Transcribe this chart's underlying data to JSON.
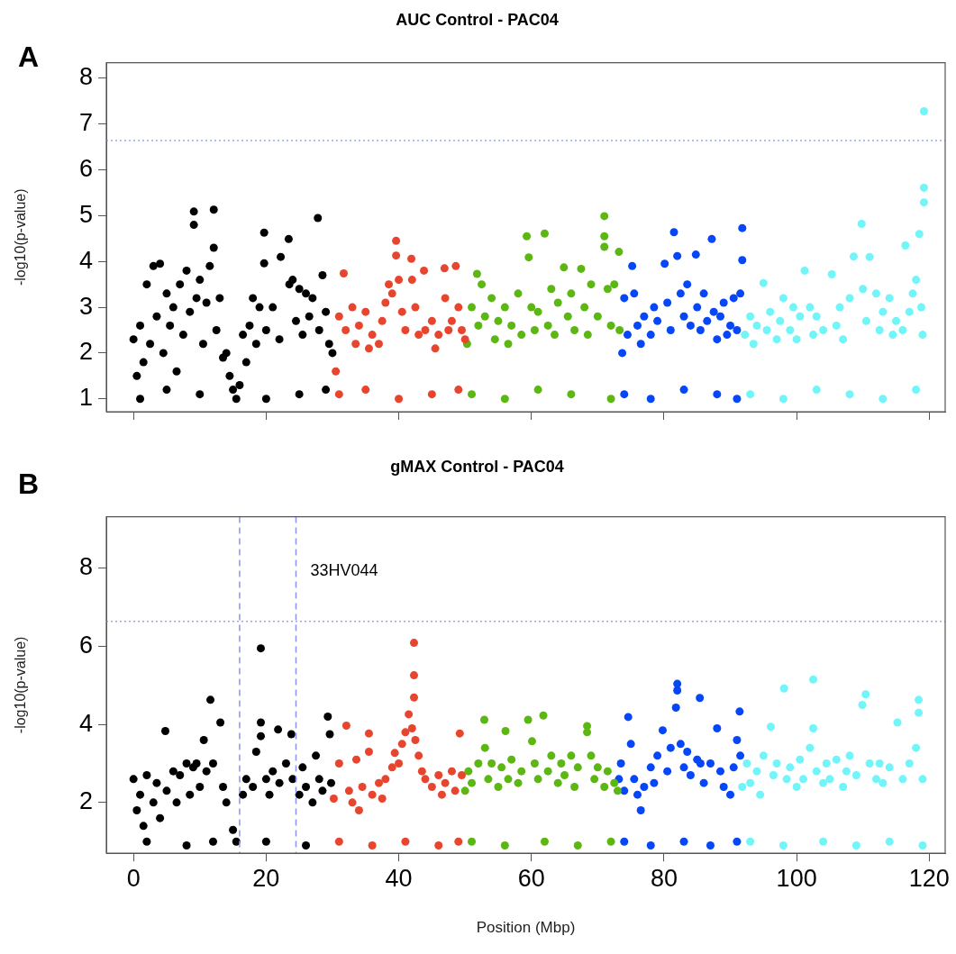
{
  "chart_data": [
    {
      "type": "scatter",
      "title": "AUC Control - PAC04",
      "ylabel": "-log10(p-value)",
      "annotations": [
        "A"
      ],
      "marker": "circle",
      "tick_labels": "y",
      "xlim": [
        -4.1,
        122.4
      ],
      "xticks": [
        0,
        20,
        40,
        60,
        80,
        100,
        120
      ],
      "ylim": [
        0.72,
        8.34
      ],
      "yticks": [
        1,
        2,
        3,
        4,
        5,
        6,
        7,
        8
      ],
      "ref_lines": [
        {
          "axis": "y",
          "value": 6.64,
          "color": "#9aa6f0",
          "line_style": "dotted"
        }
      ],
      "series": [
        {
          "color": "#000000",
          "x": [
            0,
            0.5,
            1,
            1.5,
            2,
            2.5,
            3,
            3.5,
            4,
            4.5,
            5,
            5.5,
            6,
            6.5,
            7,
            7.5,
            8,
            8.5,
            9.1,
            9.1,
            9.5,
            10,
            10.5,
            11,
            11.5,
            12.1,
            12.1,
            12.5,
            13,
            13.5,
            14,
            14.5,
            15,
            15.5,
            16,
            16.5,
            17,
            17.5,
            18,
            18.5,
            19,
            19.7,
            19.7,
            20,
            21,
            22.2,
            22,
            23.4,
            23.5,
            24,
            24.5,
            25,
            25.5,
            26,
            26.5,
            27,
            27.8,
            28,
            28.5,
            29,
            29.5,
            30,
            1,
            5,
            10,
            20,
            25,
            29
          ],
          "values": [
            2.3,
            1.5,
            2.6,
            1.8,
            3.5,
            2.2,
            3.9,
            2.8,
            3.95,
            2.0,
            3.3,
            2.6,
            3.0,
            1.6,
            3.5,
            2.4,
            3.8,
            2.9,
            5.09,
            4.8,
            3.2,
            3.6,
            2.2,
            3.1,
            3.9,
            5.13,
            4.3,
            2.5,
            3.2,
            1.9,
            2.0,
            1.5,
            1.2,
            1.0,
            1.3,
            2.4,
            1.8,
            2.6,
            3.2,
            2.2,
            3.0,
            4.63,
            3.96,
            2.5,
            3.0,
            4.1,
            2.3,
            4.49,
            3.5,
            3.6,
            2.7,
            3.4,
            2.4,
            3.3,
            2.8,
            3.2,
            4.95,
            2.5,
            3.7,
            2.9,
            2.2,
            2.0,
            1.0,
            1.2,
            1.1,
            1.0,
            1.1,
            1.2
          ]
        },
        {
          "color": "#e8452f",
          "x": [
            30.5,
            31,
            31.7,
            32,
            33,
            33.5,
            34,
            35,
            35.5,
            36,
            37,
            37.5,
            38,
            38.5,
            39,
            39.6,
            39.6,
            40,
            40.5,
            41,
            41.9,
            42,
            42.5,
            43,
            43.8,
            44,
            45,
            45.5,
            46,
            46.9,
            47,
            47.5,
            48,
            48.6,
            49,
            49.5,
            50,
            31,
            35,
            40,
            45,
            49
          ],
          "values": [
            1.6,
            2.8,
            3.74,
            2.5,
            3.0,
            2.2,
            2.6,
            2.9,
            2.1,
            2.4,
            2.2,
            2.7,
            3.1,
            3.5,
            3.3,
            4.45,
            4.13,
            3.6,
            2.9,
            2.5,
            4.06,
            3.6,
            3.0,
            2.4,
            3.8,
            2.5,
            2.7,
            2.1,
            2.4,
            3.85,
            3.2,
            2.5,
            2.7,
            3.9,
            3.0,
            2.5,
            2.3,
            1.1,
            1.2,
            1.0,
            1.1,
            1.2
          ]
        },
        {
          "color": "#5cb713",
          "x": [
            50.3,
            51,
            51.8,
            52,
            52.5,
            53,
            54,
            54.5,
            55,
            56,
            56.5,
            57,
            58,
            58.5,
            59.3,
            59.6,
            60,
            60.5,
            61,
            62,
            62.5,
            63,
            63.5,
            64,
            64.9,
            65.5,
            66,
            66.5,
            67.5,
            68,
            68.5,
            69,
            70,
            71,
            71,
            71,
            71.5,
            72,
            72.5,
            73.2,
            73.3,
            51,
            56,
            61,
            66,
            72
          ],
          "values": [
            2.2,
            3.0,
            3.73,
            2.6,
            3.5,
            2.8,
            3.2,
            2.3,
            2.7,
            3.0,
            2.2,
            2.6,
            3.3,
            2.4,
            4.55,
            4.09,
            3.0,
            2.5,
            2.9,
            4.61,
            2.6,
            3.4,
            2.4,
            3.1,
            3.87,
            2.8,
            3.3,
            2.5,
            3.84,
            3.0,
            2.4,
            3.5,
            2.8,
            4.99,
            4.55,
            4.32,
            3.4,
            2.6,
            3.5,
            4.21,
            2.5,
            1.1,
            1.0,
            1.2,
            1.1,
            1.0
          ]
        },
        {
          "color": "#0547f7",
          "x": [
            73.7,
            74,
            74.5,
            75.2,
            75.5,
            76,
            76.5,
            77,
            78,
            78.5,
            79,
            80.1,
            80.5,
            81,
            81.5,
            82,
            82.5,
            83,
            83.5,
            84,
            84.8,
            85,
            85.5,
            86,
            86.5,
            87.2,
            87.5,
            88,
            88.5,
            89,
            89.5,
            90,
            90.5,
            91,
            91.8,
            91.8,
            91.5,
            74,
            78,
            83,
            88,
            91
          ],
          "values": [
            2.0,
            3.2,
            2.4,
            3.9,
            3.3,
            2.6,
            2.2,
            2.8,
            2.4,
            3.0,
            2.7,
            3.95,
            3.1,
            2.5,
            4.64,
            4.12,
            3.3,
            2.8,
            3.5,
            2.6,
            4.15,
            3.0,
            2.5,
            3.3,
            2.7,
            4.49,
            2.9,
            2.3,
            2.8,
            3.1,
            2.4,
            2.6,
            3.2,
            2.5,
            4.73,
            4.03,
            3.3,
            1.1,
            1.0,
            1.2,
            1.1,
            1.0
          ]
        },
        {
          "color": "#72f5f8",
          "x": [
            92.2,
            93,
            93.5,
            94,
            95,
            95.5,
            96,
            97,
            97.5,
            98,
            99,
            99.5,
            100,
            100.5,
            101.2,
            102,
            102.5,
            103,
            104,
            105.3,
            106,
            106.5,
            107,
            108,
            108.6,
            109.8,
            110,
            110.5,
            111,
            112,
            112.5,
            113,
            114,
            114.5,
            115,
            116,
            116.4,
            117,
            117.5,
            118,
            118.5,
            118.8,
            119,
            119.2,
            119.2,
            119.2,
            93,
            98,
            103,
            108,
            113,
            118
          ],
          "values": [
            2.4,
            2.8,
            2.2,
            2.6,
            3.53,
            2.5,
            2.9,
            2.3,
            2.7,
            3.2,
            2.5,
            3.0,
            2.3,
            2.8,
            3.8,
            3.0,
            2.4,
            2.8,
            2.5,
            3.72,
            2.6,
            3.0,
            2.3,
            3.2,
            4.11,
            4.82,
            3.4,
            2.7,
            4.1,
            3.3,
            2.5,
            2.9,
            3.2,
            2.4,
            2.7,
            2.5,
            4.35,
            2.9,
            3.3,
            3.6,
            4.6,
            3.0,
            2.4,
            7.28,
            5.61,
            5.29,
            1.1,
            1.0,
            1.2,
            1.1,
            1.0,
            1.2
          ]
        }
      ]
    },
    {
      "type": "scatter",
      "title": "gMAX Control - PAC04",
      "xlabel": "Position (Mbp)",
      "ylabel": "-log10(p-value)",
      "annotations": [
        "B"
      ],
      "marker": "circle",
      "xlim": [
        -4.1,
        122.4
      ],
      "xticks": [
        0,
        20,
        40,
        60,
        80,
        100,
        120
      ],
      "ylim": [
        0.7,
        9.32
      ],
      "yticks": [
        2,
        4,
        6,
        8
      ],
      "ref_lines": [
        {
          "axis": "y",
          "value": 6.64,
          "color": "#9aa6f0",
          "line_style": "dotted"
        },
        {
          "axis": "x",
          "value": 16,
          "color": "#8a94f2",
          "line_style": "dashed"
        },
        {
          "axis": "x",
          "value": 24.5,
          "color": "#8a94f2",
          "line_style": "dashed",
          "label": "33HV044"
        }
      ],
      "series": [
        {
          "color": "#000000",
          "x": [
            0,
            0.5,
            1,
            1.5,
            2,
            3,
            3.5,
            4,
            4.8,
            5,
            6,
            6.5,
            7,
            8,
            8.5,
            9,
            9.5,
            10,
            10.6,
            11,
            11.6,
            12,
            13.1,
            13.5,
            14,
            15,
            15.5,
            16.5,
            17,
            18,
            18.5,
            19.2,
            19.2,
            19.2,
            20,
            20.5,
            21,
            21.8,
            22,
            23,
            23.8,
            24,
            25,
            25.5,
            26,
            27,
            27.5,
            28,
            28.5,
            29.3,
            29.6,
            29.8,
            2,
            8,
            12,
            20,
            26
          ],
          "values": [
            2.6,
            1.8,
            2.2,
            1.4,
            2.7,
            2.0,
            2.5,
            1.6,
            3.83,
            2.3,
            2.8,
            2.0,
            2.7,
            3.0,
            2.2,
            2.9,
            3.0,
            2.4,
            3.6,
            2.8,
            4.63,
            3.0,
            4.05,
            2.4,
            2.0,
            1.3,
            1.0,
            2.2,
            2.6,
            2.4,
            3.3,
            5.95,
            4.05,
            3.7,
            2.6,
            2.2,
            2.8,
            3.87,
            2.5,
            3.0,
            3.75,
            2.6,
            2.2,
            2.9,
            2.4,
            2.0,
            3.2,
            2.6,
            2.3,
            4.2,
            3.75,
            2.5,
            1.0,
            0.9,
            1.0,
            1.0,
            0.9
          ]
        },
        {
          "color": "#e8452f",
          "x": [
            30.2,
            31,
            32.1,
            32.5,
            33,
            33.6,
            34,
            34.5,
            35.5,
            35.5,
            36,
            37,
            37.5,
            38,
            39,
            39.4,
            40,
            40.5,
            41,
            41.5,
            42,
            42.3,
            42.3,
            42.3,
            42.5,
            43,
            43.5,
            44,
            45,
            46,
            46.5,
            47,
            48,
            48.5,
            49.2,
            49.5,
            31,
            36,
            41,
            46,
            49
          ],
          "values": [
            2.1,
            3.0,
            3.97,
            2.3,
            2.0,
            3.1,
            1.8,
            2.4,
            3.77,
            3.3,
            2.2,
            2.5,
            2.1,
            2.6,
            2.9,
            3.27,
            3.0,
            3.5,
            3.8,
            4.26,
            3.9,
            6.09,
            5.26,
            4.69,
            3.6,
            3.2,
            2.8,
            2.6,
            2.4,
            2.7,
            2.2,
            2.5,
            2.8,
            2.3,
            3.77,
            2.7,
            1.0,
            0.9,
            1.0,
            0.9,
            1.0
          ]
        },
        {
          "color": "#5cb713",
          "x": [
            50,
            50.5,
            51,
            52,
            52.9,
            53,
            53.5,
            54,
            55,
            55.5,
            56.1,
            56.5,
            57,
            58,
            58.5,
            59.5,
            60.1,
            60.5,
            61,
            61.8,
            62.5,
            63,
            64,
            64.5,
            65,
            66,
            66.5,
            67,
            68.4,
            68.4,
            69,
            69.5,
            70,
            71,
            71.5,
            72.5,
            73,
            51,
            56,
            62,
            67,
            72
          ],
          "values": [
            2.3,
            2.8,
            2.5,
            3.0,
            4.12,
            3.4,
            2.6,
            3.0,
            2.4,
            2.9,
            3.83,
            2.6,
            3.1,
            2.5,
            2.8,
            4.12,
            3.57,
            3.0,
            2.6,
            4.23,
            2.8,
            3.2,
            2.5,
            3.0,
            2.7,
            3.2,
            2.4,
            2.9,
            3.96,
            3.8,
            3.2,
            2.6,
            2.9,
            2.4,
            2.8,
            2.5,
            2.3,
            1.0,
            0.9,
            1.0,
            0.9,
            1.0
          ]
        },
        {
          "color": "#0547f7",
          "x": [
            73.2,
            73.5,
            74,
            74.6,
            75,
            75.5,
            76,
            76.5,
            77,
            78,
            78.5,
            79,
            79.8,
            80.5,
            81,
            81.8,
            82,
            82,
            82.5,
            83,
            83.5,
            84,
            85,
            85.4,
            85.5,
            86,
            87,
            88,
            88.5,
            89,
            90,
            90.5,
            91,
            91.4,
            91.5,
            74,
            78,
            83,
            87,
            91
          ],
          "values": [
            2.6,
            3.0,
            2.3,
            4.19,
            3.5,
            2.6,
            2.2,
            1.8,
            2.4,
            2.9,
            2.5,
            3.2,
            3.85,
            2.8,
            3.4,
            4.43,
            5.04,
            4.87,
            3.5,
            2.9,
            3.3,
            2.7,
            3.1,
            4.68,
            3.0,
            2.5,
            3.0,
            3.9,
            2.8,
            2.4,
            2.2,
            2.9,
            3.6,
            4.33,
            3.2,
            1.0,
            0.9,
            1.0,
            0.9,
            1.0
          ]
        },
        {
          "color": "#72f5f8",
          "x": [
            91.8,
            92.5,
            93,
            94,
            94.5,
            95,
            96.1,
            96.5,
            97,
            98.1,
            98.5,
            99,
            100,
            100.5,
            101,
            102,
            102.5,
            102.5,
            103,
            104,
            104.5,
            105,
            106,
            107,
            107.5,
            108,
            109,
            109.9,
            110.4,
            111,
            112,
            112.5,
            113,
            114,
            115.2,
            116,
            117,
            118,
            118.4,
            118.4,
            119,
            93,
            98,
            104,
            109,
            114,
            119
          ],
          "values": [
            2.4,
            3.0,
            2.5,
            2.8,
            2.2,
            3.2,
            3.94,
            2.7,
            3.0,
            4.92,
            2.6,
            2.9,
            2.4,
            3.1,
            2.6,
            3.4,
            5.15,
            3.9,
            2.8,
            2.5,
            3.0,
            2.6,
            3.1,
            2.4,
            2.8,
            3.2,
            2.7,
            4.5,
            4.77,
            3.0,
            2.6,
            3.0,
            2.5,
            2.9,
            4.05,
            2.6,
            3.0,
            3.4,
            4.63,
            4.3,
            2.6,
            1.0,
            0.9,
            1.0,
            0.9,
            1.0,
            0.9
          ]
        }
      ]
    }
  ]
}
